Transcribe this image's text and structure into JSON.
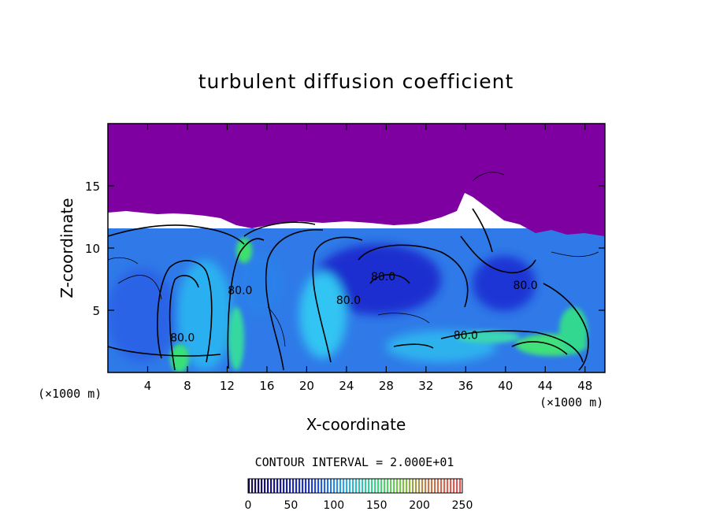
{
  "chart_data": {
    "type": "heatmap",
    "title": "turbulent diffusion coefficient",
    "xlabel": "X-coordinate",
    "ylabel": "Z-coordinate",
    "x_unit": "(×1000 m)",
    "xlim": [
      0,
      50
    ],
    "ylim": [
      0,
      20
    ],
    "x_ticks": [
      4,
      8,
      12,
      16,
      20,
      24,
      28,
      32,
      36,
      40,
      44,
      48
    ],
    "y_ticks": [
      5,
      10,
      15
    ],
    "contour_interval_label": "CONTOUR INTERVAL = 2.000E+01",
    "colorbar": {
      "min": 0,
      "max": 250,
      "ticks": [
        0,
        50,
        100,
        150,
        200,
        250
      ]
    },
    "contour_labels": [
      {
        "text": "80.0",
        "x": 7.5,
        "z": 2.5
      },
      {
        "text": "80.0",
        "x": 13.3,
        "z": 6.3
      },
      {
        "text": "80.0",
        "x": 24.2,
        "z": 5.5
      },
      {
        "text": "80.0",
        "x": 27.7,
        "z": 7.4
      },
      {
        "text": "80.0",
        "x": 36.0,
        "z": 2.7
      },
      {
        "text": "80.0",
        "x": 42.0,
        "z": 6.7
      }
    ],
    "colors": {
      "upper_region": "#7e00a0",
      "low": "#1a2ad6",
      "mid": "#27a8f0",
      "high": "#30e07a"
    }
  }
}
